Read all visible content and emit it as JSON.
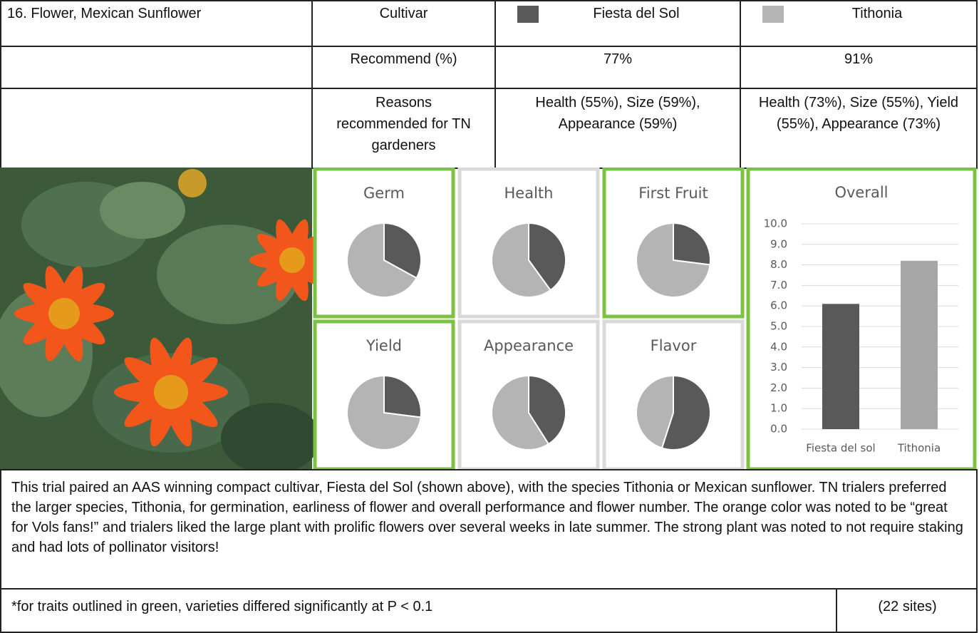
{
  "table": {
    "title": "16. Flower, Mexican Sunflower",
    "columns": [
      "Cultivar",
      "Fiesta del Sol",
      "Tithonia"
    ],
    "column_colors": [
      "#595959",
      "#b4b4b4"
    ],
    "rows": [
      [
        "Recommend (%)",
        "77%",
        "91%"
      ],
      [
        "Reasons recommended for TN gardeners",
        "Health (55%), Size (59%), Appearance (59%)",
        "Health (73%), Size (55%), Yield (55%), Appearance (73%)"
      ]
    ]
  },
  "chart_data": [
    {
      "type": "pie",
      "title": "Germ",
      "values": [
        33,
        67
      ],
      "colors": [
        "#595959",
        "#b4b4b4"
      ],
      "border_color": "#7dc242"
    },
    {
      "type": "pie",
      "title": "Health",
      "values": [
        40,
        60
      ],
      "colors": [
        "#595959",
        "#b4b4b4"
      ],
      "border_color": "#d9d9d9"
    },
    {
      "type": "pie",
      "title": "First Fruit",
      "values": [
        27,
        73
      ],
      "colors": [
        "#595959",
        "#b4b4b4"
      ],
      "border_color": "#7dc242"
    },
    {
      "type": "pie",
      "title": "Yield",
      "values": [
        27,
        73
      ],
      "colors": [
        "#595959",
        "#b4b4b4"
      ],
      "border_color": "#7dc242"
    },
    {
      "type": "pie",
      "title": "Appearance",
      "values": [
        41,
        59
      ],
      "colors": [
        "#595959",
        "#b4b4b4"
      ],
      "border_color": "#d9d9d9"
    },
    {
      "type": "pie",
      "title": "Flavor",
      "values": [
        55,
        45
      ],
      "colors": [
        "#595959",
        "#b4b4b4"
      ],
      "border_color": "#d9d9d9"
    },
    {
      "type": "bar",
      "title": "Overall",
      "categories": [
        "Fiesta del sol",
        "Tithonia"
      ],
      "values": [
        6.1,
        8.2
      ],
      "colors": [
        "#595959",
        "#a6a6a6"
      ],
      "border_color": "#7dc242",
      "ylim": [
        0,
        10
      ],
      "yticks": [
        {
          "value": 0,
          "label": "0.0"
        },
        {
          "value": 1,
          "label": "1.0"
        },
        {
          "value": 2,
          "label": "2.0"
        },
        {
          "value": 3,
          "label": "3.0"
        },
        {
          "value": 4,
          "label": "4.0"
        },
        {
          "value": 5,
          "label": "5.0"
        },
        {
          "value": 6,
          "label": "6.0"
        },
        {
          "value": 7,
          "label": "7.0"
        },
        {
          "value": 8,
          "label": "8.0"
        },
        {
          "value": 9,
          "label": "9.0"
        },
        {
          "value": 10,
          "label": "10.0"
        }
      ],
      "grid": true
    }
  ],
  "description": "This trial paired an AAS winning compact cultivar, Fiesta del Sol (shown above), with the species Tithonia or Mexican sunflower. TN trialers preferred the larger species, Tithonia, for germination, earliness of flower and overall performance and flower number. The orange color was noted to be “great for Vols fans!” and trialers liked the large plant with prolific flowers over several weeks in late summer. The strong plant was noted to not require staking and had lots of pollinator visitors!",
  "footnote": {
    "text": "*for traits outlined in green, varieties differed significantly at P < 0.1",
    "sites": "(22 sites)"
  }
}
